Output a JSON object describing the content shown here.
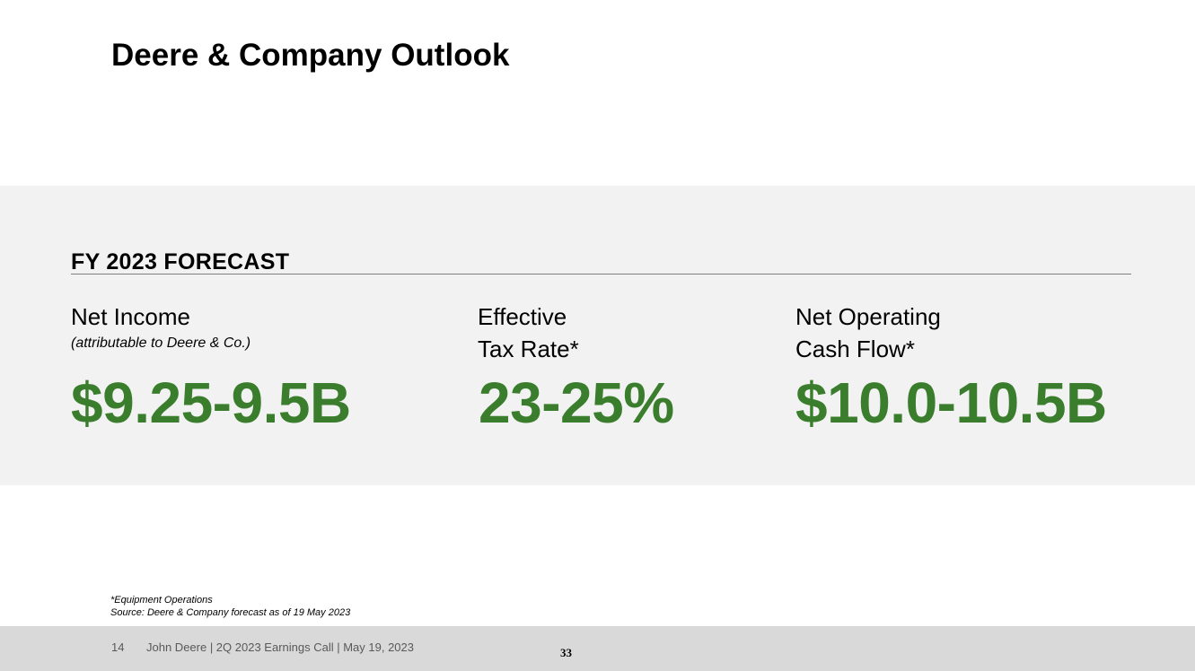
{
  "slide": {
    "title": "Deere & Company Outlook",
    "forecast_heading": "FY 2023 FORECAST",
    "metrics": [
      {
        "label_line1": "Net Income",
        "label_line2": "",
        "sublabel": "(attributable to Deere & Co.)",
        "value": "$9.25-9.5B"
      },
      {
        "label_line1": "Effective",
        "label_line2": "Tax Rate*",
        "sublabel": "",
        "value": "23-25%"
      },
      {
        "label_line1": "Net Operating",
        "label_line2": "Cash Flow*",
        "sublabel": "",
        "value": "$10.0-10.5B"
      }
    ],
    "footnotes": [
      "*Equipment Operations",
      "Source: Deere & Company forecast as of 19 May 2023"
    ],
    "footer": {
      "slide_number": "14",
      "text": "John Deere | 2Q 2023 Earnings Call | May 19, 2023",
      "page_number": "33"
    }
  },
  "colors": {
    "accent_green": "#3a7d2c",
    "band_gray": "#f2f2f2",
    "footer_gray": "#d9d9d9"
  }
}
